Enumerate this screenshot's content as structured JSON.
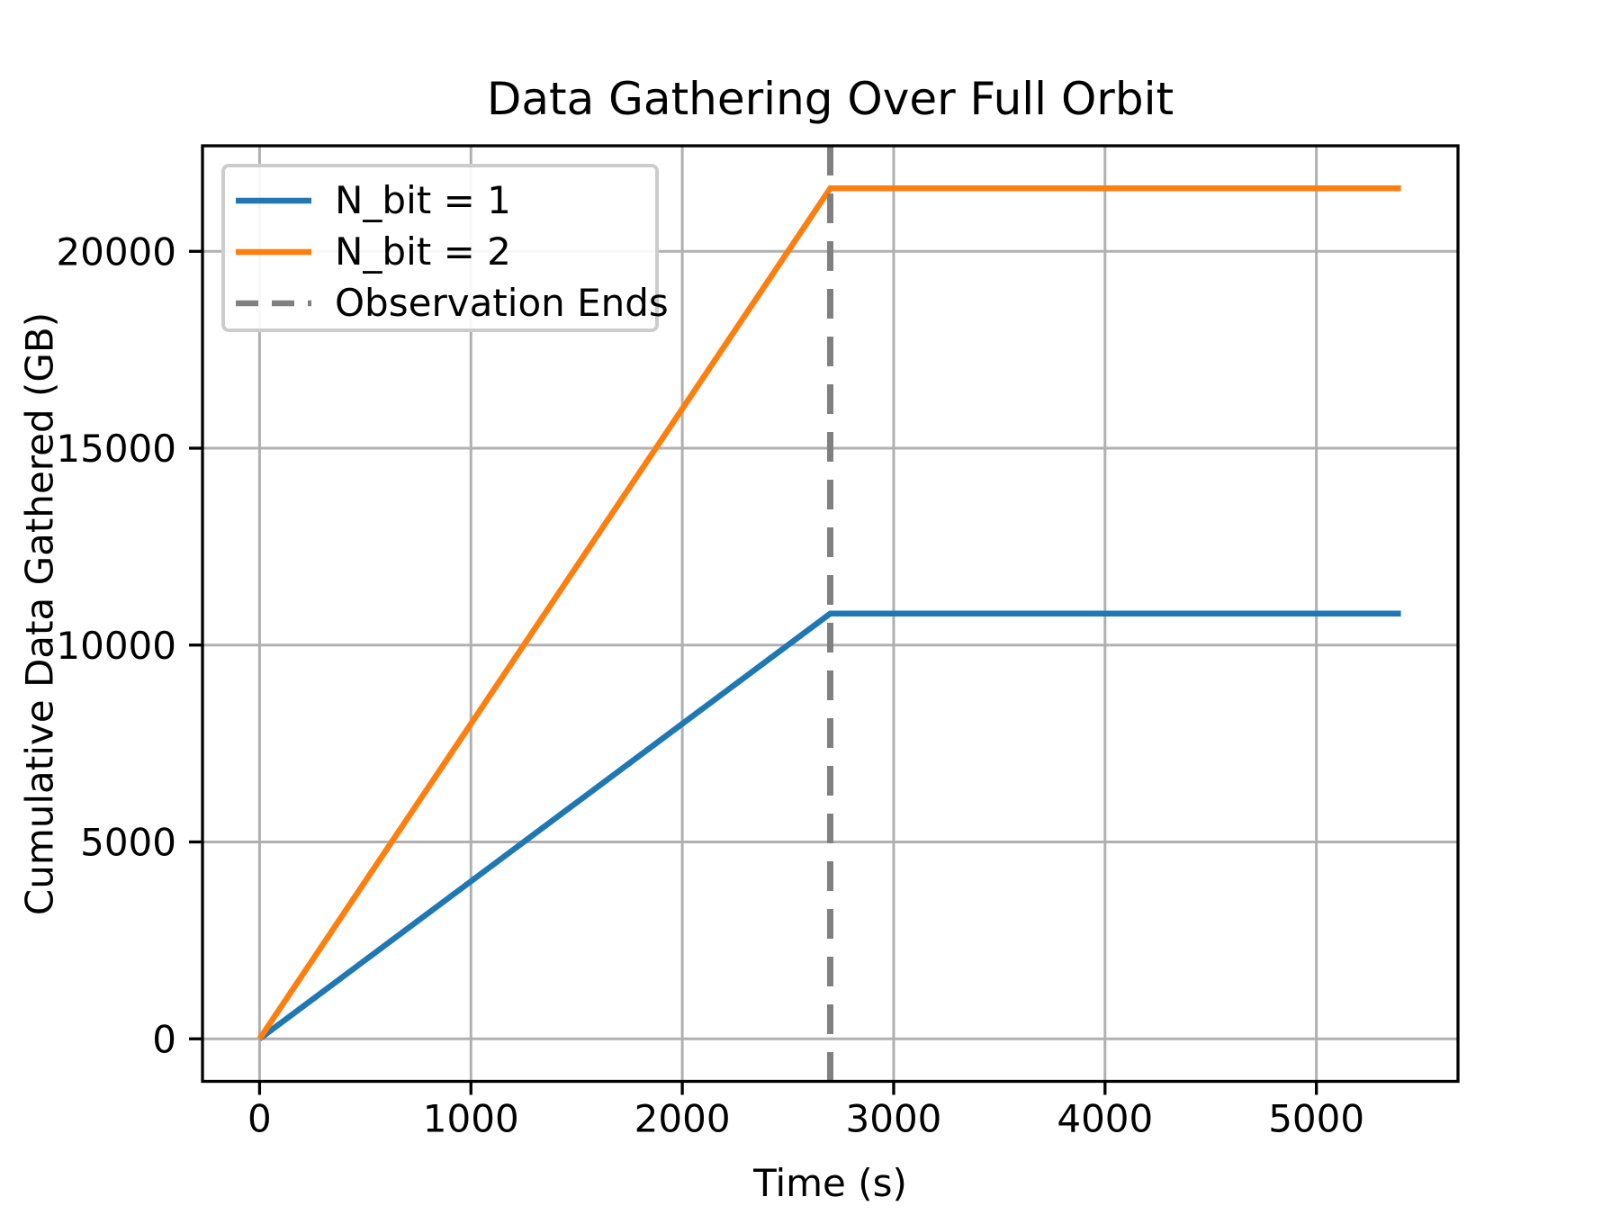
{
  "figure": {
    "background_color": "#ffffff"
  },
  "chart_data": {
    "type": "line",
    "title": "Data Gathering Over Full Orbit",
    "xlabel": "Time (s)",
    "ylabel": "Cumulative Data Gathered (GB)",
    "xlim": [
      -270,
      5670
    ],
    "ylim": [
      -1080,
      22680
    ],
    "x_ticks": [
      0,
      1000,
      2000,
      3000,
      4000,
      5000
    ],
    "y_ticks": [
      0,
      5000,
      10000,
      15000,
      20000
    ],
    "grid": true,
    "grid_color": "#b0b0b0",
    "spine_color": "#000000",
    "legend_position": "upper-left",
    "series": [
      {
        "name": "N_bit = 1",
        "color": "#1f77b4",
        "x": [
          0,
          2700,
          5400
        ],
        "y": [
          0,
          10800,
          10800
        ]
      },
      {
        "name": "N_bit = 2",
        "color": "#ff7f0e",
        "x": [
          0,
          2700,
          5400
        ],
        "y": [
          0,
          21600,
          21600
        ]
      }
    ],
    "annotations": [
      {
        "name": "Observation Ends",
        "type": "vline",
        "x": 2700,
        "color": "#808080",
        "linestyle": "dashed"
      }
    ]
  }
}
